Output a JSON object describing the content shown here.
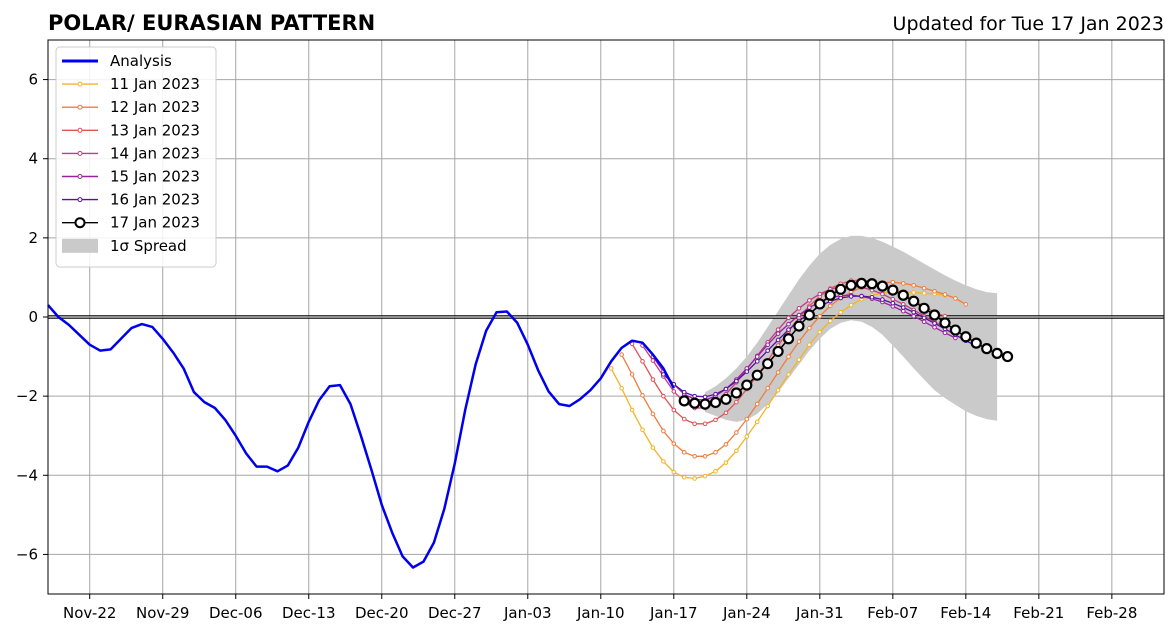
{
  "chart_data": {
    "type": "line",
    "title": "POLAR/ EURASIAN  PATTERN",
    "subtitle": "Updated for Tue 17 Jan 2023",
    "xlabel": "",
    "ylabel": "",
    "xlim": [
      "2022-11-18",
      "2023-03-05"
    ],
    "ylim": [
      -7,
      7
    ],
    "x_ticks": [
      "2022-11-22",
      "2022-11-29",
      "2022-12-06",
      "2022-12-13",
      "2022-12-20",
      "2022-12-27",
      "2023-01-03",
      "2023-01-10",
      "2023-01-17",
      "2023-01-24",
      "2023-01-31",
      "2023-02-07",
      "2023-02-14",
      "2023-02-21",
      "2023-02-28"
    ],
    "x_tick_labels": [
      "Nov-22",
      "Nov-29",
      "Dec-06",
      "Dec-13",
      "Dec-20",
      "Dec-27",
      "Jan-03",
      "Jan-10",
      "Jan-17",
      "Jan-24",
      "Jan-31",
      "Feb-07",
      "Feb-14",
      "Feb-21",
      "Feb-28"
    ],
    "y_ticks": [
      -6,
      -4,
      -2,
      0,
      2,
      4,
      6
    ],
    "y_tick_labels": [
      "−6",
      "−4",
      "−2",
      "0",
      "2",
      "4",
      "6"
    ],
    "grid": true,
    "legend_position": "top-left",
    "analysis": {
      "name": "Analysis",
      "color": "#0000ee",
      "start": "2022-11-18",
      "values": [
        0.3,
        0.0,
        -0.2,
        -0.45,
        -0.7,
        -0.85,
        -0.82,
        -0.55,
        -0.28,
        -0.18,
        -0.25,
        -0.55,
        -0.9,
        -1.3,
        -1.9,
        -2.15,
        -2.3,
        -2.6,
        -3.0,
        -3.45,
        -3.78,
        -3.78,
        -3.9,
        -3.75,
        -3.3,
        -2.65,
        -2.1,
        -1.75,
        -1.72,
        -2.2,
        -3.0,
        -3.85,
        -4.75,
        -5.45,
        -6.05,
        -6.33,
        -6.18,
        -5.7,
        -4.85,
        -3.7,
        -2.35,
        -1.2,
        -0.35,
        0.12,
        0.14,
        -0.15,
        -0.7,
        -1.35,
        -1.88,
        -2.2,
        -2.25,
        -2.08,
        -1.85,
        -1.55,
        -1.12,
        -0.78,
        -0.6,
        -0.65,
        -0.95,
        -1.3,
        -1.8
      ]
    },
    "forecasts": [
      {
        "name": "11 Jan 2023",
        "color": "#f5b326",
        "start": "2023-01-11",
        "values": [
          -1.3,
          -1.8,
          -2.35,
          -2.85,
          -3.3,
          -3.65,
          -3.92,
          -4.05,
          -4.08,
          -4.02,
          -3.9,
          -3.68,
          -3.38,
          -3.02,
          -2.65,
          -2.25,
          -1.85,
          -1.45,
          -1.08,
          -0.7,
          -0.38,
          -0.1,
          0.12,
          0.3,
          0.45,
          0.55,
          0.6,
          0.65,
          0.65,
          0.62,
          0.6,
          0.58,
          0.55
        ]
      },
      {
        "name": "12 Jan 2023",
        "color": "#f07d3d",
        "start": "2023-01-12",
        "values": [
          -0.95,
          -1.45,
          -1.98,
          -2.45,
          -2.88,
          -3.2,
          -3.42,
          -3.52,
          -3.52,
          -3.42,
          -3.22,
          -2.92,
          -2.58,
          -2.2,
          -1.8,
          -1.4,
          -1.0,
          -0.62,
          -0.28,
          0.02,
          0.28,
          0.48,
          0.63,
          0.75,
          0.83,
          0.87,
          0.88,
          0.85,
          0.8,
          0.73,
          0.65,
          0.57,
          0.47,
          0.32
        ]
      },
      {
        "name": "13 Jan 2023",
        "color": "#df5257",
        "start": "2023-01-13",
        "values": [
          -0.68,
          -1.12,
          -1.58,
          -2.0,
          -2.35,
          -2.58,
          -2.7,
          -2.7,
          -2.6,
          -2.42,
          -2.15,
          -1.82,
          -1.48,
          -1.1,
          -0.72,
          -0.36,
          -0.02,
          0.28,
          0.52,
          0.72,
          0.84,
          0.92,
          0.93,
          0.9,
          0.82,
          0.72,
          0.58,
          0.43,
          0.27,
          0.12,
          0.02
        ]
      },
      {
        "name": "14 Jan 2023",
        "color": "#c23b80",
        "start": "2023-01-14",
        "values": [
          -0.72,
          -1.1,
          -1.5,
          -1.88,
          -2.15,
          -2.3,
          -2.3,
          -2.18,
          -1.95,
          -1.65,
          -1.32,
          -0.98,
          -0.64,
          -0.32,
          -0.02,
          0.22,
          0.42,
          0.58,
          0.7,
          0.76,
          0.78,
          0.75,
          0.68,
          0.58,
          0.45,
          0.32,
          0.18,
          0.02,
          -0.12,
          -0.27
        ]
      },
      {
        "name": "15 Jan 2023",
        "color": "#9b21a0",
        "start": "2023-01-15",
        "values": [
          -1.0,
          -1.38,
          -1.7,
          -1.95,
          -2.08,
          -2.1,
          -2.0,
          -1.82,
          -1.58,
          -1.3,
          -1.0,
          -0.7,
          -0.42,
          -0.18,
          0.05,
          0.24,
          0.38,
          0.48,
          0.54,
          0.55,
          0.52,
          0.46,
          0.38,
          0.27,
          0.15,
          0.02,
          -0.12,
          -0.26,
          -0.4,
          -0.53
        ]
      },
      {
        "name": "16 Jan 2023",
        "color": "#5a0f9e",
        "start": "2023-01-16",
        "values": [
          -1.45,
          -1.7,
          -1.9,
          -2.0,
          -2.02,
          -1.95,
          -1.82,
          -1.62,
          -1.38,
          -1.12,
          -0.85,
          -0.58,
          -0.32,
          -0.1,
          0.1,
          0.27,
          0.4,
          0.48,
          0.52,
          0.53,
          0.5,
          0.44,
          0.35,
          0.24,
          0.12,
          -0.02,
          -0.16,
          -0.3,
          -0.45,
          -0.6,
          -0.73
        ]
      },
      {
        "name": "17 Jan 2023",
        "color": "#000000",
        "start": "2023-01-18",
        "values": [
          -2.12,
          -2.18,
          -2.2,
          -2.16,
          -2.08,
          -1.92,
          -1.72,
          -1.47,
          -1.18,
          -0.87,
          -0.55,
          -0.23,
          0.05,
          0.33,
          0.55,
          0.7,
          0.8,
          0.85,
          0.84,
          0.78,
          0.68,
          0.55,
          0.4,
          0.22,
          0.05,
          -0.15,
          -0.33,
          -0.5,
          -0.66,
          -0.8,
          -0.92,
          -1.0
        ]
      }
    ],
    "spread": {
      "name": "1σ Spread",
      "color": "#cacaca",
      "start": "2023-01-20",
      "upper": [
        -1.9,
        -1.75,
        -1.55,
        -1.3,
        -1.0,
        -0.65,
        -0.25,
        0.15,
        0.55,
        0.95,
        1.3,
        1.6,
        1.82,
        1.97,
        2.05,
        2.05,
        2.0,
        1.9,
        1.78,
        1.65,
        1.5,
        1.35,
        1.2,
        1.05,
        0.92,
        0.8,
        0.7,
        0.63,
        0.6
      ],
      "lower": [
        -2.4,
        -2.5,
        -2.6,
        -2.65,
        -2.6,
        -2.45,
        -2.2,
        -1.9,
        -1.55,
        -1.2,
        -0.85,
        -0.55,
        -0.3,
        -0.15,
        -0.08,
        -0.12,
        -0.25,
        -0.45,
        -0.72,
        -1.0,
        -1.3,
        -1.58,
        -1.85,
        -2.05,
        -2.22,
        -2.38,
        -2.5,
        -2.58,
        -2.62
      ]
    }
  }
}
